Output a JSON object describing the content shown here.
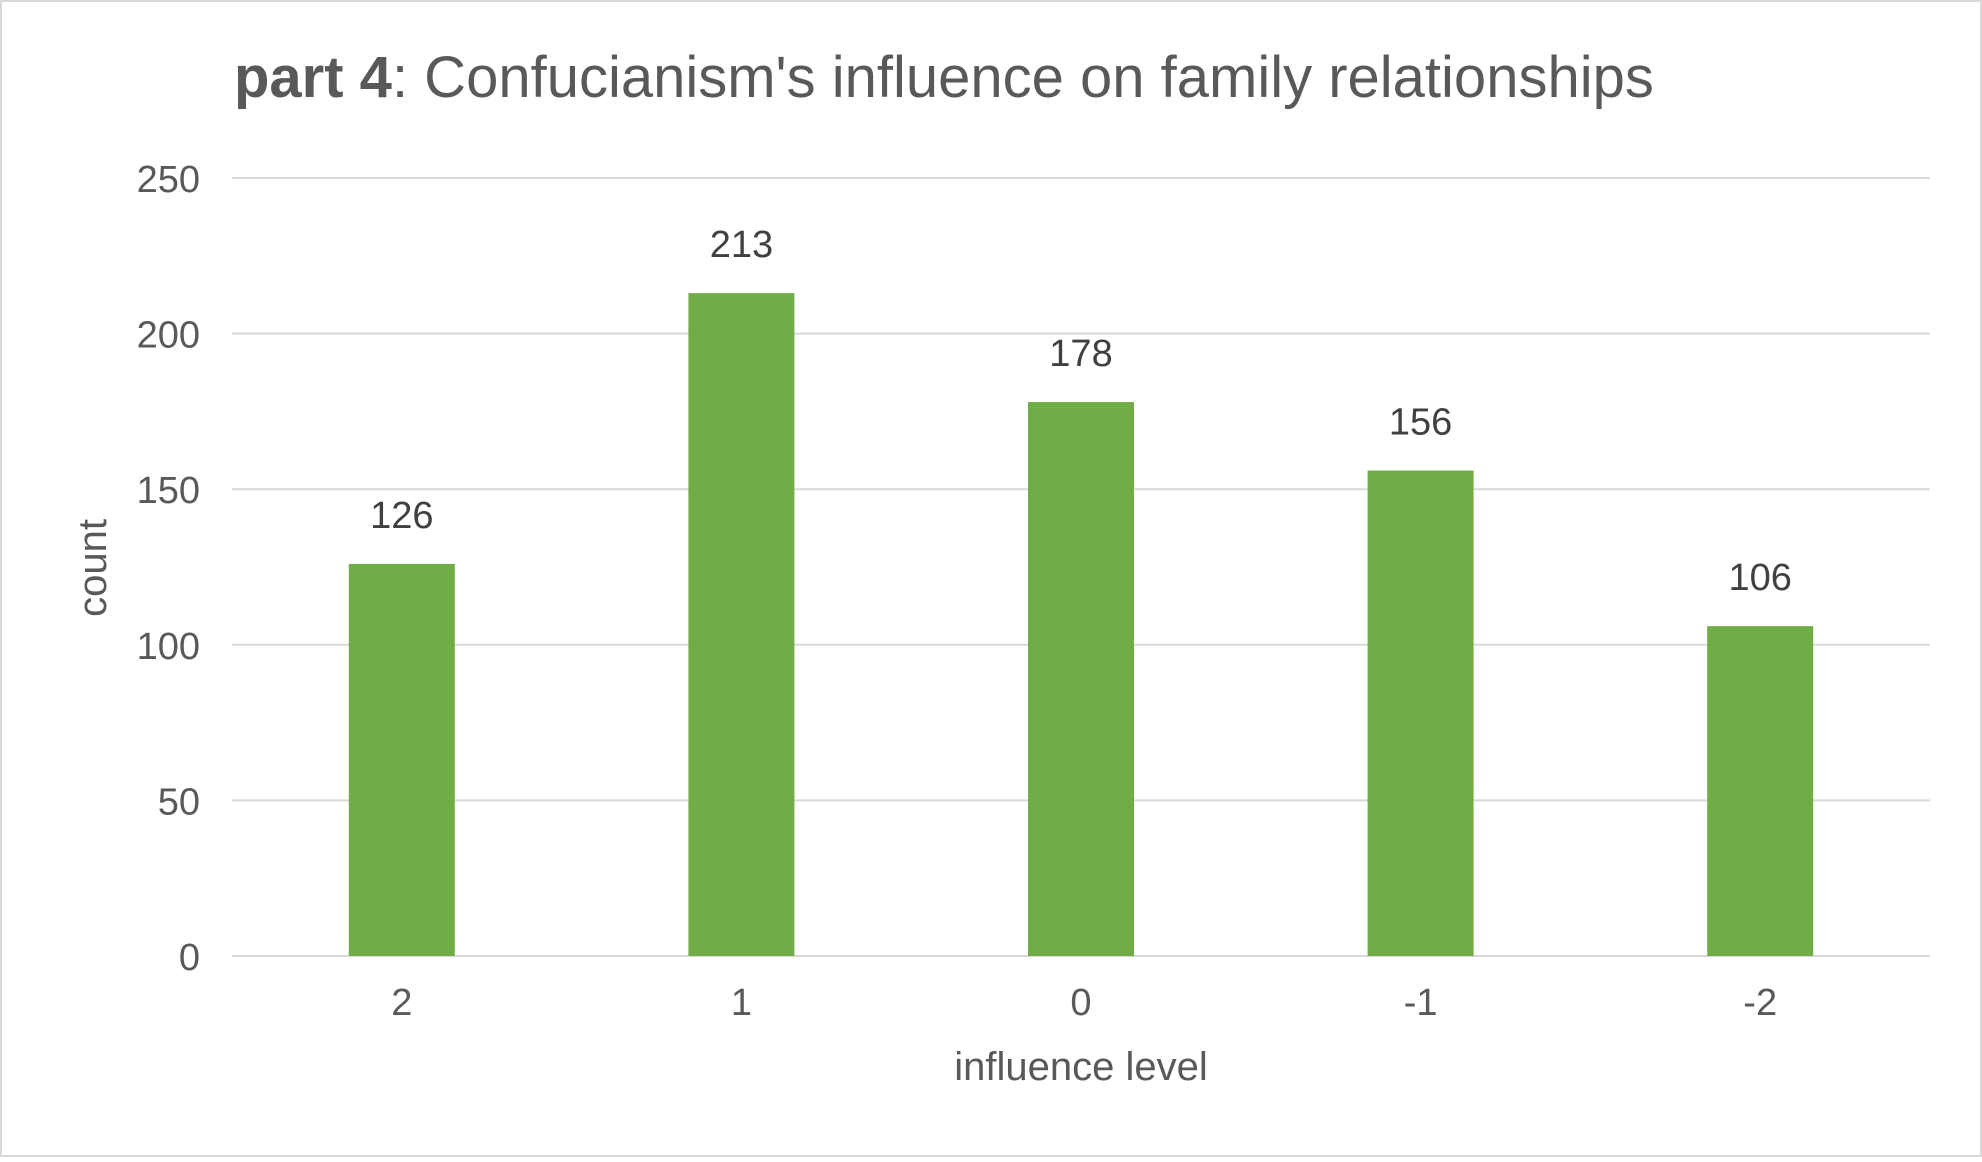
{
  "chart_data": {
    "type": "bar",
    "title": {
      "bold": "part 4",
      "rest": ": Confucianism's influence on family relationships"
    },
    "xlabel": "influence level",
    "ylabel": "count",
    "categories": [
      "2",
      "1",
      "0",
      "-1",
      "-2"
    ],
    "values": [
      126,
      213,
      178,
      156,
      106
    ],
    "ylim": [
      0,
      250
    ],
    "yticks": [
      0,
      50,
      100,
      150,
      200,
      250
    ],
    "grid": true,
    "data_labels": true,
    "bar_color": "#70AD47"
  },
  "colors": {
    "text": "#595959",
    "label_text": "#404040",
    "grid": "#D9D9D9",
    "border": "#D9D9D9"
  }
}
